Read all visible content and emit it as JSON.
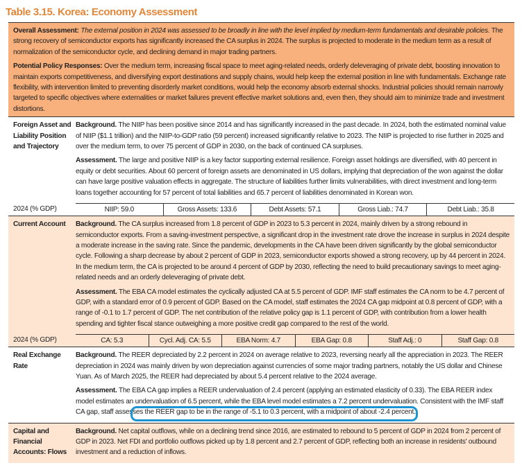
{
  "title": "Table 3.15. Korea: Economy Assessment",
  "overall": {
    "label": "Overall Assessment:",
    "italic": "The external position in 2024 was assessed to be broadly in line with the level implied by medium-term fundamentals and desirable policies.",
    "text": "The strong recovery of semiconductor exports has significantly increased the CA surplus in 2024. The surplus is projected to moderate in the medium term as a result of normalization of the semiconductor cycle, and declining demand in major trading partners.",
    "policy_label": "Potential Policy Responses:",
    "policy_text": "Over the medium term, increasing fiscal space to meet aging-related needs, orderly deleveraging of private debt, boosting innovation to maintain exports competitiveness, and diversifying export destinations and supply chains, would help keep the external position in line with fundamentals. Exchange rate flexibility, with intervention limited to preventing disorderly market conditions, would help the economy absorb external shocks. Industrial policies should remain narrowly targeted to specific objectives where externalities or market failures prevent effective market solutions and, even then, they should aim to minimize trade and investment distortions."
  },
  "rows": [
    {
      "label": "Foreign Asset and Liability Position and Trajectory",
      "background_label": "Background.",
      "background": "The NIIP has been positive since 2014 and has significantly increased in the past decade. In 2024, both the estimated nominal value of NIIP ($1.1 trillion) and the NIIP-to-GDP ratio (59 percent) increased significantly relative to 2023. The NIIP is projected to rise further in 2025 and over the medium term, to over 75 percent of GDP in 2030, on the back of continued CA surpluses.",
      "assessment_label": "Assessment.",
      "assessment": "The large and positive NIIP is a key factor supporting external resilience. Foreign asset holdings are diversified, with 40 percent in equity or debt securities. About 60 percent of foreign assets are denominated in US dollars, implying that depreciation of the won against the dollar can have large positive valuation effects in aggregate. The structure of liabilities further limits vulnerabilities, with direct investment and long-term loans together accounting for 57 percent of total liabilities and 65.7 percent of liabilities denominated in Korean won.",
      "stats_label": "2024 (% GDP)",
      "stats": [
        "NIIP: 59.0",
        "Gross Assets: 133.6",
        "Debt Assets: 57.1",
        "Gross Liab.: 74.7",
        "Debt Liab.: 35.8"
      ]
    },
    {
      "label": "Current Account",
      "background_label": "Background.",
      "background": "The CA surplus increased from 1.8 percent of GDP in 2023 to 5.3 percent in 2024, mainly driven by a strong rebound in semiconductor exports. From a saving-investment perspective, a significant drop in the investment rate drove the increase in surplus in 2024 despite a moderate increase in the saving rate. Since the pandemic, developments in the CA have been driven significantly by the global semiconductor cycle. Following a sharp decrease by about 2 percent of GDP in 2023, semiconductor exports showed a strong recovery, up by 44 percent in 2024. In the medium term, the CA is projected to be around 4 percent of GDP by 2030, reflecting the need to build precautionary savings to meet aging-related needs and an orderly deleveraging of private debt.",
      "assessment_label": "Assessment.",
      "assessment": "The EBA CA model estimates the cyclically adjusted CA at 5.5 percent of GDP. IMF staff estimates the CA norm to be 4.7 percent of GDP, with a standard error of 0.9 percent of GDP. Based on the CA model, staff estimates the 2024 CA gap midpoint at 0.8 percent of GDP, with a range of -0.1 to 1.7 percent of GDP. The net contribution of the relative policy gap is 1.1 percent of GDP, with contribution from a lower health spending and tighter fiscal stance outweighing a more positive credit gap compared to the rest of the world.",
      "stats_label": "2024 (% GDP)",
      "stats": [
        "CA: 5.3",
        "Cycl. Adj. CA: 5.5",
        "EBA Norm: 4.7",
        "EBA Gap: 0.8",
        "Staff Adj.: 0",
        "Staff Gap: 0.8"
      ]
    },
    {
      "label": "Real Exchange Rate",
      "background_label": "Background.",
      "background": "The REER depreciated by 2.2 percent in 2024 on average relative to 2023, reversing nearly all the appreciation in 2023. The REER depreciation in 2024 was mainly driven by won depreciation against currencies of some major trading partners, notably the US dollar and Chinese Yuan. As of March 2025, the REER had depreciated by about 5.4 percent relative to the 2024 average.",
      "assessment_label": "Assessment.",
      "assessment": "The EBA CA gap implies a REER undervaluation of 2.4 percent (applying an estimated elasticity of 0.33). The EBA REER index model estimates an undervaluation of 6.5 percent, while the EBA level model estimates a 7.2 percent undervaluation. Consistent with the IMF staff CA gap, staff assesses the REER gap to be in the range of -5.1 to 0.3 percent, with a midpoint of about -2.4 percent."
    },
    {
      "label": "Capital and Financial Accounts: Flows",
      "background_label": "Background.",
      "background": "Net capital outflows, while on a declining trend since 2016, are estimated to rebound to 5 percent of GDP in 2024 from 2 percent of GDP in 2023. Net FDI and portfolio outflows picked up by 1.8 percent and 2.7 percent of GDP, reflecting both an increase in residents' outbound investment and a reduction of inflows."
    }
  ],
  "colors": {
    "title": "#e2873a",
    "overall_bg": "#f8b07c",
    "peach_bg": "#fde5d2",
    "highlight": "#1c93d3"
  }
}
